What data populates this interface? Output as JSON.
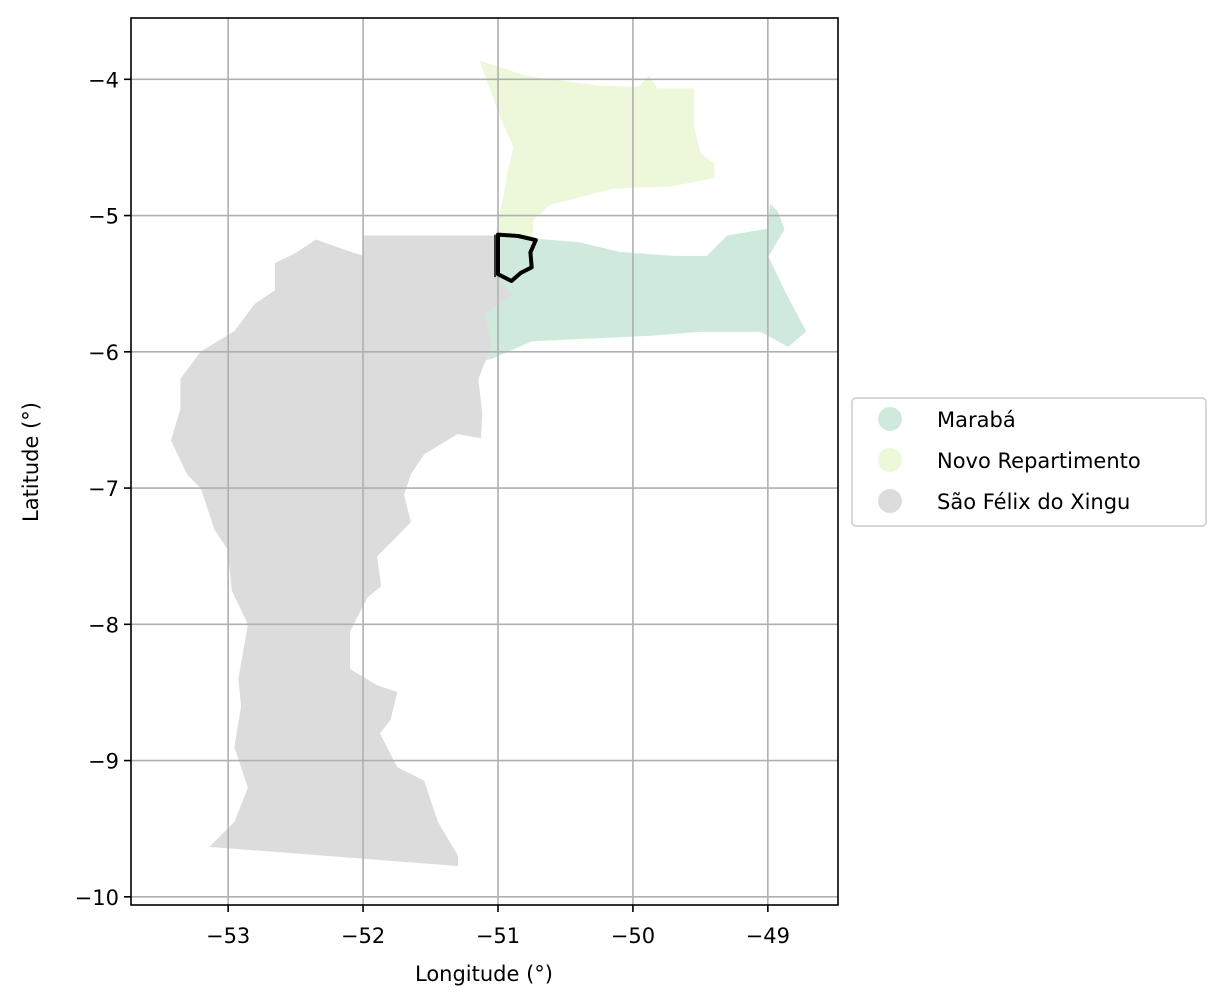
{
  "map": {
    "xlabel": "Longitude (°)",
    "ylabel": "Latitude (°)",
    "xlim": [
      -53.72,
      -48.48
    ],
    "ylim": [
      -10.06,
      -3.55
    ],
    "x_ticks": [
      -53,
      -52,
      -51,
      -50,
      -49
    ],
    "y_ticks": [
      -4,
      -5,
      -6,
      -7,
      -8,
      -9,
      -10
    ],
    "x_tick_labels": [
      "−53",
      "−52",
      "−51",
      "−50",
      "−49"
    ],
    "y_tick_labels": [
      "−4",
      "−5",
      "−6",
      "−7",
      "−8",
      "−9",
      "−10"
    ],
    "grid": true,
    "legend_position": "right-center",
    "legend": [
      {
        "label": "Marabá",
        "color": "#cfeadc"
      },
      {
        "label": "Novo Repartimento",
        "color": "#edf7da"
      },
      {
        "label": "São Félix do Xingu",
        "color": "#dcdcdc"
      }
    ],
    "regions": [
      {
        "name": "Novo Repartimento",
        "color": "#edf7da",
        "coords": [
          [
            -51.13,
            -3.87
          ],
          [
            -50.78,
            -3.98
          ],
          [
            -50.25,
            -4.05
          ],
          [
            -49.96,
            -4.06
          ],
          [
            -49.88,
            -3.98
          ],
          [
            -49.82,
            -4.07
          ],
          [
            -49.55,
            -4.07
          ],
          [
            -49.55,
            -4.35
          ],
          [
            -49.5,
            -4.55
          ],
          [
            -49.4,
            -4.62
          ],
          [
            -49.4,
            -4.72
          ],
          [
            -49.7,
            -4.78
          ],
          [
            -50.15,
            -4.8
          ],
          [
            -50.35,
            -4.85
          ],
          [
            -50.62,
            -4.92
          ],
          [
            -50.74,
            -5.03
          ],
          [
            -50.75,
            -5.17
          ],
          [
            -50.9,
            -5.23
          ],
          [
            -51.02,
            -5.22
          ],
          [
            -51.0,
            -5.05
          ],
          [
            -50.96,
            -4.88
          ],
          [
            -50.93,
            -4.7
          ],
          [
            -50.88,
            -4.5
          ],
          [
            -50.97,
            -4.3
          ]
        ]
      },
      {
        "name": "Marabá",
        "color": "#cfeadc",
        "coords": [
          [
            -51.02,
            -5.16
          ],
          [
            -50.75,
            -5.17
          ],
          [
            -50.4,
            -5.2
          ],
          [
            -50.1,
            -5.27
          ],
          [
            -49.7,
            -5.3
          ],
          [
            -49.45,
            -5.3
          ],
          [
            -49.3,
            -5.15
          ],
          [
            -49.0,
            -5.1
          ],
          [
            -48.98,
            -4.92
          ],
          [
            -48.93,
            -4.97
          ],
          [
            -48.88,
            -5.1
          ],
          [
            -49.0,
            -5.3
          ],
          [
            -48.88,
            -5.55
          ],
          [
            -48.8,
            -5.7
          ],
          [
            -48.72,
            -5.85
          ],
          [
            -48.85,
            -5.96
          ],
          [
            -49.05,
            -5.85
          ],
          [
            -49.5,
            -5.85
          ],
          [
            -49.9,
            -5.88
          ],
          [
            -50.35,
            -5.9
          ],
          [
            -50.75,
            -5.92
          ],
          [
            -51.05,
            -6.05
          ],
          [
            -51.25,
            -6.08
          ],
          [
            -51.4,
            -6.0
          ],
          [
            -51.3,
            -5.9
          ],
          [
            -51.05,
            -5.6
          ],
          [
            -51.02,
            -5.5
          ]
        ]
      },
      {
        "name": "São Félix do Xingu",
        "color": "#dcdcdc",
        "coords": [
          [
            -52.0,
            -5.15
          ],
          [
            -51.0,
            -5.15
          ],
          [
            -51.02,
            -5.45
          ],
          [
            -50.9,
            -5.58
          ],
          [
            -51.1,
            -5.72
          ],
          [
            -51.05,
            -5.95
          ],
          [
            -51.15,
            -6.2
          ],
          [
            -51.12,
            -6.45
          ],
          [
            -51.13,
            -6.63
          ],
          [
            -51.3,
            -6.6
          ],
          [
            -51.55,
            -6.75
          ],
          [
            -51.65,
            -6.9
          ],
          [
            -51.7,
            -7.05
          ],
          [
            -51.65,
            -7.25
          ],
          [
            -51.9,
            -7.5
          ],
          [
            -51.87,
            -7.72
          ],
          [
            -51.97,
            -7.8
          ],
          [
            -52.1,
            -8.05
          ],
          [
            -52.1,
            -8.33
          ],
          [
            -51.9,
            -8.45
          ],
          [
            -51.75,
            -8.5
          ],
          [
            -51.8,
            -8.7
          ],
          [
            -51.88,
            -8.8
          ],
          [
            -51.75,
            -9.05
          ],
          [
            -51.55,
            -9.15
          ],
          [
            -51.45,
            -9.45
          ],
          [
            -51.3,
            -9.7
          ],
          [
            -51.3,
            -9.77
          ],
          [
            -53.13,
            -9.63
          ],
          [
            -52.95,
            -9.45
          ],
          [
            -52.85,
            -9.2
          ],
          [
            -52.95,
            -8.9
          ],
          [
            -52.9,
            -8.6
          ],
          [
            -52.92,
            -8.4
          ],
          [
            -52.85,
            -8.0
          ],
          [
            -52.97,
            -7.75
          ],
          [
            -53.0,
            -7.45
          ],
          [
            -53.1,
            -7.3
          ],
          [
            -53.2,
            -7.0
          ],
          [
            -53.3,
            -6.9
          ],
          [
            -53.42,
            -6.65
          ],
          [
            -53.35,
            -6.42
          ],
          [
            -53.35,
            -6.2
          ],
          [
            -53.2,
            -6.0
          ],
          [
            -52.95,
            -5.85
          ],
          [
            -52.8,
            -5.65
          ],
          [
            -52.65,
            -5.55
          ],
          [
            -52.65,
            -5.35
          ],
          [
            -52.5,
            -5.28
          ],
          [
            -52.35,
            -5.18
          ],
          [
            -52.15,
            -5.25
          ],
          [
            -52.0,
            -5.3
          ]
        ]
      }
    ],
    "outline": {
      "coords": [
        [
          -51.0,
          -5.14
        ],
        [
          -50.85,
          -5.15
        ],
        [
          -50.72,
          -5.18
        ],
        [
          -50.76,
          -5.27
        ],
        [
          -50.75,
          -5.38
        ],
        [
          -50.83,
          -5.42
        ],
        [
          -50.9,
          -5.48
        ],
        [
          -51.0,
          -5.43
        ]
      ],
      "color": "#000000"
    }
  }
}
